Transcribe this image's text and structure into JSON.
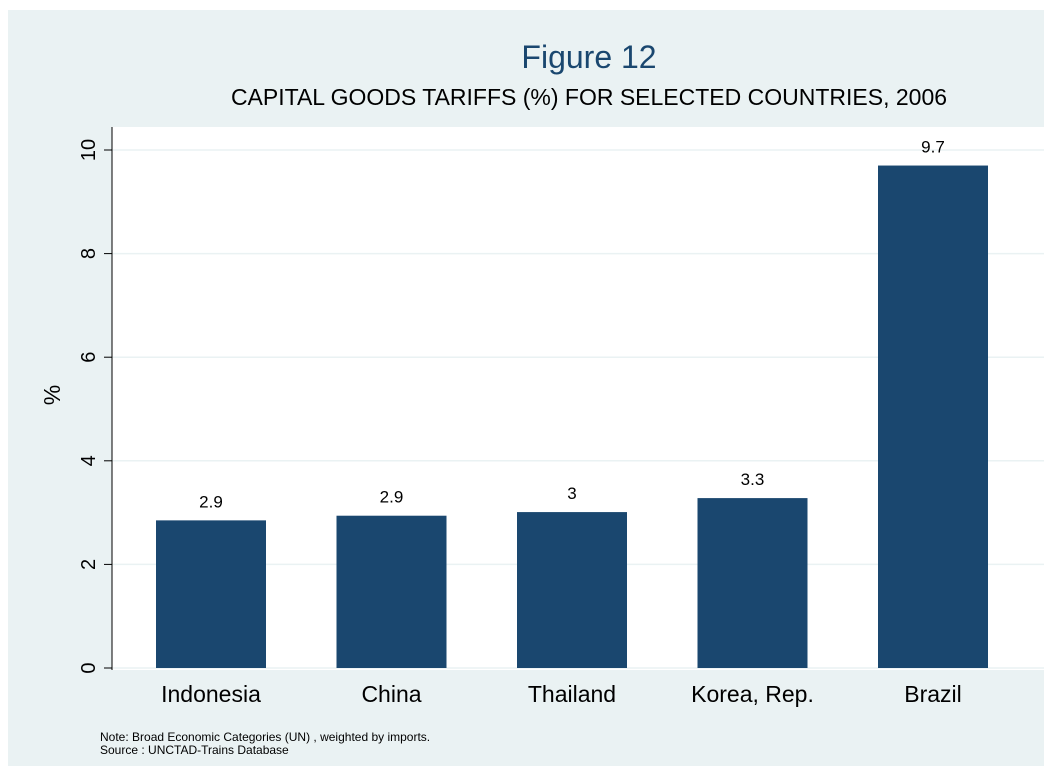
{
  "chart_data": {
    "type": "bar",
    "title": "Figure 12",
    "subtitle": "CAPITAL GOODS TARIFFS (%)  FOR SELECTED COUNTRIES, 2006",
    "ylabel": "%",
    "xlabel": "",
    "categories": [
      "Indonesia",
      "China",
      "Thailand",
      "Korea, Rep.",
      "Brazil"
    ],
    "values": [
      2.85,
      2.94,
      3.01,
      3.28,
      9.7
    ],
    "data_labels": [
      "2.9",
      "2.9",
      "3",
      "3.3",
      "9.7"
    ],
    "ylim": [
      0,
      10
    ],
    "yticks": [
      "0",
      "2",
      "4",
      "6",
      "8",
      "10"
    ],
    "grid": true,
    "bar_color": "#1a476f",
    "background_color": "#eaf2f3",
    "plot_background_color": "#ffffff",
    "notes": [
      "Note: Broad Economic Categories (UN) , weighted by imports.",
      "Source : UNCTAD-Trains Database"
    ]
  }
}
